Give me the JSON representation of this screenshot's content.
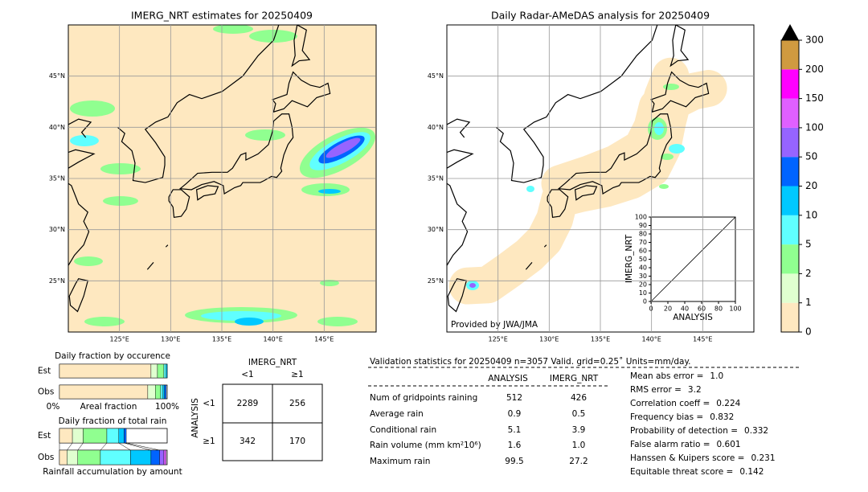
{
  "maps": [
    {
      "title": "IMERG_NRT estimates for 20250409",
      "lon_range": [
        120,
        150
      ],
      "lat_range": [
        20,
        50
      ],
      "lon_ticks": [
        {
          "value": 125,
          "label": "125°E"
        },
        {
          "value": 130,
          "label": "130°E"
        },
        {
          "value": 135,
          "label": "135°E"
        },
        {
          "value": 140,
          "label": "140°E"
        },
        {
          "value": 145,
          "label": "145°E"
        }
      ],
      "lat_ticks": [
        {
          "value": 45,
          "label": "45°N"
        },
        {
          "value": 40,
          "label": "40°N"
        },
        {
          "value": 35,
          "label": "35°N"
        },
        {
          "value": 30,
          "label": "30°N"
        },
        {
          "value": 25,
          "label": "25°N"
        }
      ]
    },
    {
      "title": "Daily Radar-AMeDAS analysis for 20250409",
      "credit": "Provided by JWA/JMA",
      "lon_range": [
        120,
        150
      ],
      "lat_range": [
        20,
        50
      ],
      "lon_ticks": [
        {
          "value": 125,
          "label": "125°E"
        },
        {
          "value": 130,
          "label": "130°E"
        },
        {
          "value": 135,
          "label": "135°E"
        },
        {
          "value": 140,
          "label": "140°E"
        },
        {
          "value": 145,
          "label": "145°E"
        }
      ],
      "lat_ticks": [
        {
          "value": 45,
          "label": "45°N"
        },
        {
          "value": 40,
          "label": "40°N"
        },
        {
          "value": 35,
          "label": "35°N"
        },
        {
          "value": 30,
          "label": "30°N"
        },
        {
          "value": 25,
          "label": "25°N"
        }
      ]
    }
  ],
  "colorbar": {
    "levels": [
      0,
      1,
      2,
      5,
      10,
      20,
      50,
      100,
      150,
      200,
      300
    ],
    "colors": [
      "#fee8c0",
      "#e0ffd0",
      "#90ff90",
      "#60ffff",
      "#00c8ff",
      "#0064ff",
      "#9664ff",
      "#e060ff",
      "#ff00ff",
      "#d09a40"
    ]
  },
  "scatter": {
    "xlabel": "ANALYSIS",
    "ylabel": "IMERG_NRT",
    "xlim": [
      0,
      100
    ],
    "ylim": [
      0,
      100
    ],
    "xticks": [
      0,
      20,
      40,
      60,
      80,
      100
    ],
    "yticks": [
      0,
      10,
      20,
      30,
      40,
      50,
      60,
      70,
      80,
      90,
      100
    ]
  },
  "occurrence": {
    "title": "Daily fraction by occurence",
    "xlim": [
      0,
      100
    ],
    "rows": [
      {
        "name": "Est",
        "values": [
          85,
          6,
          6,
          2,
          1
        ]
      },
      {
        "name": "Obs",
        "values": [
          82,
          7,
          5,
          2,
          1.5,
          1.5
        ]
      }
    ],
    "axis_labels": [
      "0%",
      "Areal fraction",
      "100%"
    ]
  },
  "total_rain": {
    "title": "Daily fraction of total rain",
    "xlim": [
      0,
      100
    ],
    "rows": [
      {
        "name": "Est",
        "values": [
          12,
          10,
          22,
          11,
          5,
          2
        ]
      },
      {
        "name": "Obs",
        "values": [
          7,
          10,
          21,
          28,
          19,
          8,
          4,
          2
        ]
      }
    ],
    "footer": "Rainfall accumulation by amount"
  },
  "contingency": {
    "col_title": "IMERG_NRT",
    "col_labels": [
      "<1",
      "≥1"
    ],
    "row_title": "ANALYSIS",
    "row_labels": [
      "<1",
      "≥1"
    ],
    "cells": [
      [
        2289,
        256
      ],
      [
        342,
        170
      ]
    ]
  },
  "validation": {
    "header": "Validation statistics for 20250409  n=3057 Valid. grid=0.25˚ Units=mm/day.",
    "columns": [
      "ANALYSIS",
      "IMERG_NRT"
    ],
    "rows": [
      {
        "label": "Num of gridpoints raining",
        "values": [
          512,
          426
        ]
      },
      {
        "label": "Average rain",
        "values": [
          0.9,
          0.5
        ]
      },
      {
        "label": "Conditional rain",
        "values": [
          5.1,
          3.9
        ]
      },
      {
        "label": "Rain volume (mm km²10⁶)",
        "values": [
          1.6,
          1
        ],
        "value_labels": [
          "1.6",
          "1.0"
        ]
      },
      {
        "label": "Maximum rain",
        "values": [
          99.5,
          27.2
        ]
      }
    ],
    "scores": [
      {
        "label": "Mean abs error =",
        "value": 1,
        "value_label": "1.0"
      },
      {
        "label": "RMS error =",
        "value": 3.2
      },
      {
        "label": "Correlation coeff =",
        "value": 0.224
      },
      {
        "label": "Frequency bias =",
        "value": 0.832
      },
      {
        "label": "Probability of detection =",
        "value": 0.332
      },
      {
        "label": "False alarm ratio =",
        "value": 0.601
      },
      {
        "label": "Hanssen & Kuipers score =",
        "value": 0.231
      },
      {
        "label": "Equitable threat score =",
        "value": 0.142
      }
    ]
  }
}
